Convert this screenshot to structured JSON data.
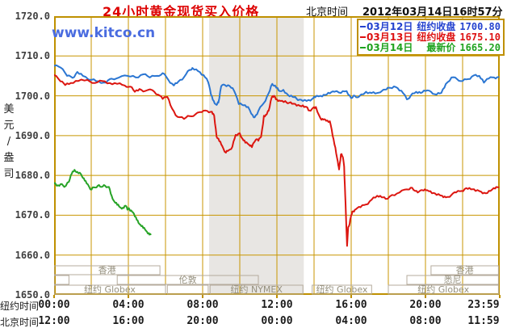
{
  "header": {
    "title": "24小时黄金现货买入价格",
    "clock_label": "北京时间",
    "datetime": "2012年03月14日16时57分"
  },
  "watermark": "www.kitco.cn",
  "legend": {
    "rows": [
      {
        "date": "03月12日",
        "name": "纽约收盘",
        "value": "1700.80",
        "color": "#2543cf"
      },
      {
        "date": "03月13日",
        "name": "纽约收盘",
        "value": "1675.10",
        "color": "#dd1111"
      },
      {
        "date": "03月14日",
        "name": "最新价",
        "value": "1665.20",
        "color": "#1fa31f"
      }
    ]
  },
  "y_axis": {
    "unit": "美\n元\n/\n盎\n司",
    "ticks": [
      "1720.0",
      "1710.0",
      "1700.0",
      "1690.0",
      "1680.0",
      "1670.0",
      "1660.0",
      "1650.0"
    ]
  },
  "x_axis": {
    "ny_header": "纽约时间",
    "bj_header": "北京时间",
    "ny_times": [
      "00:00",
      "04:00",
      "08:00",
      "12:00",
      "16:00",
      "20:00",
      "23:59"
    ],
    "bj_times": [
      "12:00",
      "16:00",
      "20:00",
      "00:00",
      "04:00",
      "08:00",
      "11:59"
    ]
  },
  "chart_data": {
    "type": "line",
    "title": "24小时黄金现货买入价格",
    "xlabel": "纽约时间 / 北京时间",
    "ylabel": "美元/盎司",
    "ylim": [
      1650,
      1720
    ],
    "xrange_hours": [
      0,
      24
    ],
    "grid": {
      "x_step_hours": 2,
      "y_step": 10
    },
    "colors": {
      "frame": "#bf9000",
      "grid": "#c89600",
      "band": "#e8e6e3",
      "session_border": "#b5ab9c",
      "session_text": "#95907e"
    },
    "highlight_band_hours": {
      "from": 8.35,
      "to": 13.45,
      "label": "纽约 NYMEX"
    },
    "sessions": [
      {
        "row": 1,
        "items": [
          {
            "label": "香港",
            "from": 0.0,
            "to": 5.7
          },
          {
            "label": "香港",
            "from": 20.3,
            "to": 23.93
          }
        ]
      },
      {
        "row": 2,
        "items": [
          {
            "label": "",
            "from": 0.0,
            "to": 0.8
          },
          {
            "label": "伦敦",
            "from": 3.4,
            "to": 11.0
          },
          {
            "label": "悉尼",
            "from": 19.0,
            "to": 23.93
          }
        ]
      },
      {
        "row": 3,
        "items": [
          {
            "label": "纽约 Globex",
            "from": 0.0,
            "to": 6.0
          },
          {
            "label": "",
            "from": 6.1,
            "to": 8.3
          },
          {
            "label": "纽约 NYMEX",
            "from": 8.4,
            "to": 13.4
          },
          {
            "label": "纽约 Globex",
            "from": 13.9,
            "to": 17.1
          },
          {
            "label": "纽约 Globex",
            "from": 18.0,
            "to": 23.93
          }
        ]
      }
    ],
    "series": [
      {
        "name": "03月12日 纽约收盘 1700.80",
        "color": "#2b76d2",
        "points": [
          [
            0,
            1707.5
          ],
          [
            0.35,
            1707.1
          ],
          [
            0.7,
            1705
          ],
          [
            1.0,
            1704.5
          ],
          [
            1.25,
            1706
          ],
          [
            1.55,
            1705
          ],
          [
            2.0,
            1704
          ],
          [
            2.4,
            1703.6
          ],
          [
            2.8,
            1703.3
          ],
          [
            3.1,
            1704.3
          ],
          [
            3.5,
            1704.6
          ],
          [
            3.95,
            1705
          ],
          [
            4.4,
            1704.6
          ],
          [
            4.8,
            1705.4
          ],
          [
            5.15,
            1704.6
          ],
          [
            5.55,
            1705
          ],
          [
            5.85,
            1705.7
          ],
          [
            6.15,
            1704
          ],
          [
            6.45,
            1702.6
          ],
          [
            6.7,
            1703.6
          ],
          [
            7.0,
            1704.7
          ],
          [
            7.3,
            1706.5
          ],
          [
            7.45,
            1707
          ],
          [
            7.75,
            1706.2
          ],
          [
            8.05,
            1705.2
          ],
          [
            8.3,
            1703.4
          ],
          [
            8.45,
            1700.3
          ],
          [
            8.6,
            1698.7
          ],
          [
            8.75,
            1697.7
          ],
          [
            8.85,
            1698.3
          ],
          [
            9.0,
            1702.4
          ],
          [
            9.2,
            1702.7
          ],
          [
            9.45,
            1702.5
          ],
          [
            9.7,
            1701.2
          ],
          [
            9.95,
            1697.9
          ],
          [
            10.2,
            1697.6
          ],
          [
            10.45,
            1697.2
          ],
          [
            10.7,
            1695.1
          ],
          [
            10.8,
            1694.6
          ],
          [
            11.0,
            1696.2
          ],
          [
            11.3,
            1698.2
          ],
          [
            11.55,
            1700.6
          ],
          [
            11.75,
            1703
          ],
          [
            11.9,
            1702.6
          ],
          [
            12.1,
            1701.3
          ],
          [
            12.35,
            1701.5
          ],
          [
            12.6,
            1700.2
          ],
          [
            12.85,
            1699.7
          ],
          [
            13.05,
            1699.3
          ],
          [
            13.3,
            1699
          ],
          [
            13.6,
            1698.7
          ],
          [
            13.9,
            1699.2
          ],
          [
            14.05,
            1699.6
          ],
          [
            14.35,
            1700
          ],
          [
            14.6,
            1700.2
          ],
          [
            14.85,
            1700.6
          ],
          [
            15.1,
            1701
          ],
          [
            15.45,
            1700.7
          ],
          [
            15.75,
            1701.2
          ],
          [
            16.0,
            1699.4
          ],
          [
            16.2,
            1700
          ],
          [
            16.4,
            1699.7
          ],
          [
            16.8,
            1701
          ],
          [
            17.1,
            1700.7
          ],
          [
            17.4,
            1700.7
          ],
          [
            17.9,
            1701.6
          ],
          [
            18.1,
            1702
          ],
          [
            18.4,
            1702.2
          ],
          [
            18.7,
            1701.3
          ],
          [
            19.0,
            1699.1
          ],
          [
            19.2,
            1700
          ],
          [
            19.5,
            1701
          ],
          [
            19.75,
            1700.7
          ],
          [
            20.0,
            1701.2
          ],
          [
            20.3,
            1701
          ],
          [
            20.6,
            1700.3
          ],
          [
            20.85,
            1700.7
          ],
          [
            21.1,
            1703
          ],
          [
            21.4,
            1704.6
          ],
          [
            21.7,
            1704.2
          ],
          [
            22.0,
            1703.7
          ],
          [
            22.3,
            1704.2
          ],
          [
            22.6,
            1705.1
          ],
          [
            22.9,
            1705
          ],
          [
            23.15,
            1703.3
          ],
          [
            23.4,
            1704.3
          ],
          [
            23.7,
            1704.6
          ],
          [
            23.93,
            1704.7
          ]
        ]
      },
      {
        "name": "03月13日 纽约收盘 1675.10",
        "color": "#dc1610",
        "points": [
          [
            0,
            1705.2
          ],
          [
            0.35,
            1703.6
          ],
          [
            0.6,
            1702.7
          ],
          [
            0.9,
            1703.2
          ],
          [
            1.3,
            1703.7
          ],
          [
            1.8,
            1704
          ],
          [
            2.2,
            1703.2
          ],
          [
            2.6,
            1703.7
          ],
          [
            3.0,
            1703.2
          ],
          [
            3.4,
            1703
          ],
          [
            3.8,
            1702.6
          ],
          [
            4.1,
            1702.3
          ],
          [
            4.35,
            1701
          ],
          [
            4.6,
            1701.7
          ],
          [
            4.9,
            1701.2
          ],
          [
            5.3,
            1701.4
          ],
          [
            5.6,
            1700.3
          ],
          [
            5.85,
            1699.2
          ],
          [
            6.1,
            1699.7
          ],
          [
            6.35,
            1696.8
          ],
          [
            6.65,
            1694.7
          ],
          [
            7.0,
            1694.2
          ],
          [
            7.3,
            1694.9
          ],
          [
            7.6,
            1695.3
          ],
          [
            7.95,
            1695.9
          ],
          [
            8.25,
            1696.2
          ],
          [
            8.5,
            1696
          ],
          [
            8.62,
            1695
          ],
          [
            8.75,
            1689.7
          ],
          [
            8.9,
            1688.6
          ],
          [
            9.05,
            1687.4
          ],
          [
            9.25,
            1685.7
          ],
          [
            9.4,
            1686.3
          ],
          [
            9.6,
            1687.2
          ],
          [
            9.78,
            1690.2
          ],
          [
            10.0,
            1690.6
          ],
          [
            10.15,
            1689.2
          ],
          [
            10.3,
            1688.2
          ],
          [
            10.5,
            1687.7
          ],
          [
            10.65,
            1687.1
          ],
          [
            10.87,
            1689
          ],
          [
            11.0,
            1688.7
          ],
          [
            11.15,
            1689.7
          ],
          [
            11.3,
            1695
          ],
          [
            11.45,
            1695.3
          ],
          [
            11.55,
            1696.2
          ],
          [
            11.72,
            1699.6
          ],
          [
            11.85,
            1700
          ],
          [
            12.0,
            1699.1
          ],
          [
            12.2,
            1698.7
          ],
          [
            12.45,
            1698.7
          ],
          [
            12.65,
            1698.2
          ],
          [
            12.9,
            1698
          ],
          [
            13.15,
            1697.7
          ],
          [
            13.4,
            1697.6
          ],
          [
            13.6,
            1697.2
          ],
          [
            13.75,
            1696.3
          ],
          [
            13.95,
            1697
          ],
          [
            14.1,
            1697.2
          ],
          [
            14.35,
            1694.3
          ],
          [
            14.5,
            1694
          ],
          [
            14.65,
            1693.7
          ],
          [
            14.85,
            1693.6
          ],
          [
            15.0,
            1690
          ],
          [
            15.15,
            1687
          ],
          [
            15.28,
            1683.5
          ],
          [
            15.35,
            1681.5
          ],
          [
            15.45,
            1685.3
          ],
          [
            15.55,
            1684.6
          ],
          [
            15.62,
            1682.2
          ],
          [
            15.68,
            1675
          ],
          [
            15.73,
            1668.3
          ],
          [
            15.78,
            1662.3
          ],
          [
            15.84,
            1667
          ],
          [
            15.92,
            1668
          ],
          [
            16.0,
            1670
          ],
          [
            16.1,
            1671
          ],
          [
            16.25,
            1671.5
          ],
          [
            16.5,
            1672
          ],
          [
            16.8,
            1672.7
          ],
          [
            17.1,
            1673.9
          ],
          [
            17.4,
            1674.9
          ],
          [
            17.65,
            1674.5
          ],
          [
            17.85,
            1674.1
          ],
          [
            18.2,
            1675.1
          ],
          [
            18.6,
            1675.7
          ],
          [
            19.0,
            1676.5
          ],
          [
            19.2,
            1676.9
          ],
          [
            19.45,
            1676.1
          ],
          [
            19.65,
            1675.9
          ],
          [
            19.9,
            1676.2
          ],
          [
            20.1,
            1676.3
          ],
          [
            20.35,
            1675.5
          ],
          [
            20.6,
            1675.1
          ],
          [
            20.9,
            1674.9
          ],
          [
            21.1,
            1674.5
          ],
          [
            21.4,
            1675.1
          ],
          [
            21.65,
            1675.7
          ],
          [
            21.95,
            1676.1
          ],
          [
            22.2,
            1676.8
          ],
          [
            22.45,
            1676.5
          ],
          [
            22.7,
            1676.1
          ],
          [
            23.0,
            1675.9
          ],
          [
            23.25,
            1675.5
          ],
          [
            23.5,
            1676.1
          ],
          [
            23.75,
            1676.7
          ],
          [
            23.93,
            1677
          ]
        ]
      },
      {
        "name": "03月14日 最新价 1665.20",
        "color": "#27a327",
        "points": [
          [
            0,
            1678
          ],
          [
            0.15,
            1677.4
          ],
          [
            0.35,
            1677.8
          ],
          [
            0.55,
            1677.1
          ],
          [
            0.8,
            1678.4
          ],
          [
            0.95,
            1680.4
          ],
          [
            1.1,
            1681.4
          ],
          [
            1.25,
            1680.9
          ],
          [
            1.45,
            1680.3
          ],
          [
            1.6,
            1679.3
          ],
          [
            1.75,
            1678
          ],
          [
            1.95,
            1676.5
          ],
          [
            2.15,
            1677
          ],
          [
            2.35,
            1677.4
          ],
          [
            2.55,
            1677.1
          ],
          [
            2.75,
            1677.4
          ],
          [
            2.95,
            1677.1
          ],
          [
            3.1,
            1674.9
          ],
          [
            3.25,
            1673.4
          ],
          [
            3.4,
            1672.6
          ],
          [
            3.55,
            1672
          ],
          [
            3.7,
            1671.9
          ],
          [
            3.85,
            1672.4
          ],
          [
            3.95,
            1671.4
          ],
          [
            4.05,
            1671.6
          ],
          [
            4.2,
            1670.9
          ],
          [
            4.35,
            1669.7
          ],
          [
            4.5,
            1668.7
          ],
          [
            4.65,
            1667.6
          ],
          [
            4.8,
            1666.8
          ],
          [
            4.95,
            1666.1
          ],
          [
            5.1,
            1665.5
          ],
          [
            5.2,
            1665.2
          ]
        ]
      }
    ]
  }
}
